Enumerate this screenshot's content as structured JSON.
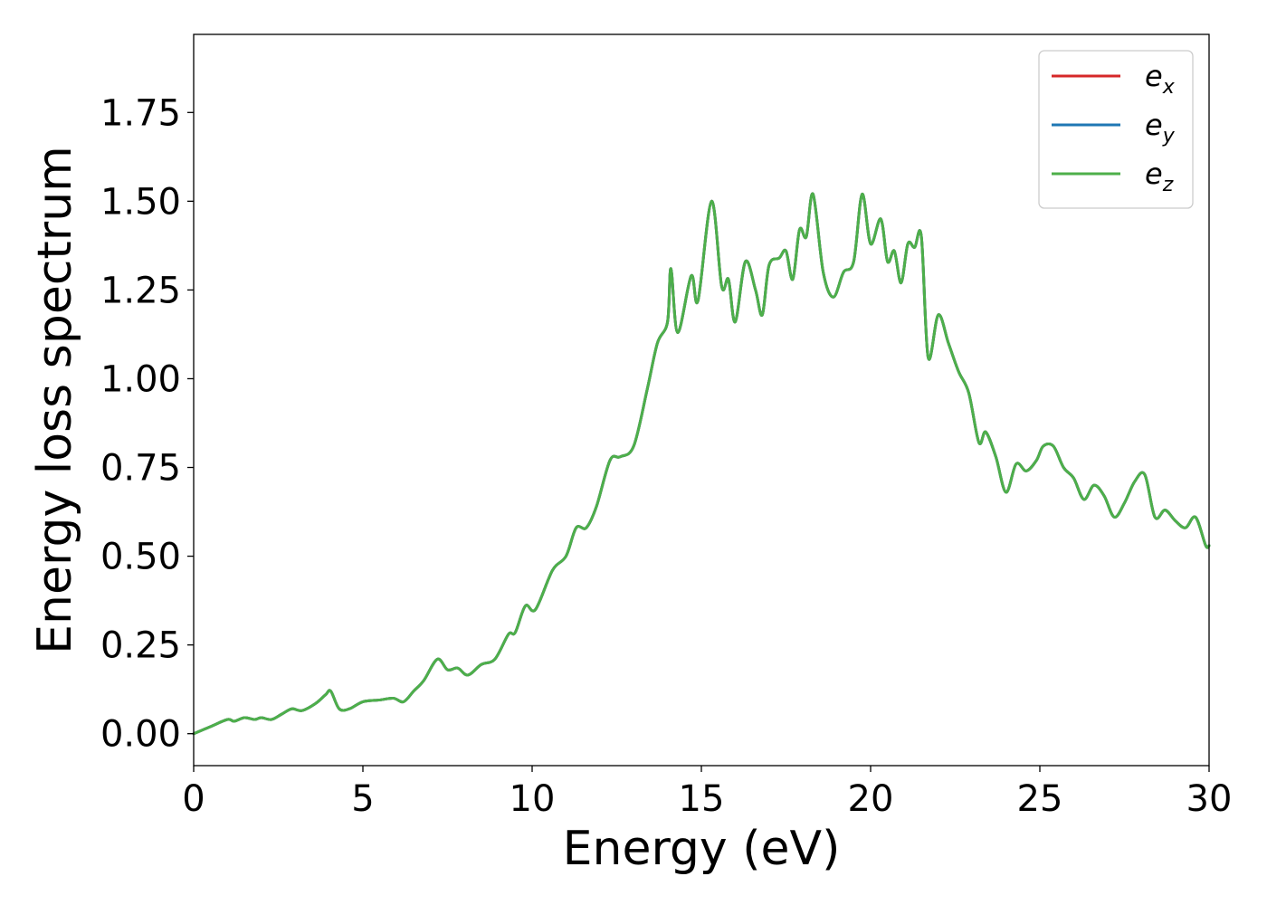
{
  "chart_data": {
    "type": "line",
    "title": "",
    "xlabel": "Energy (eV)",
    "ylabel": "Energy loss spectrum",
    "xlim": [
      0,
      30
    ],
    "ylim": [
      -0.09,
      1.97
    ],
    "xticks": [
      0,
      5,
      10,
      15,
      20,
      25,
      30
    ],
    "xtick_labels": [
      "0",
      "5",
      "10",
      "15",
      "20",
      "25",
      "30"
    ],
    "yticks": [
      0.0,
      0.25,
      0.5,
      0.75,
      1.0,
      1.25,
      1.5,
      1.75
    ],
    "ytick_labels": [
      "0.00",
      "0.25",
      "0.50",
      "0.75",
      "1.00",
      "1.25",
      "1.50",
      "1.75"
    ],
    "grid": false,
    "legend_position": "top-right",
    "x": [
      0,
      0.5,
      1.0,
      1.2,
      1.5,
      1.8,
      2.0,
      2.3,
      2.6,
      2.9,
      3.2,
      3.6,
      3.9,
      4.05,
      4.3,
      4.6,
      5.0,
      5.5,
      5.9,
      6.2,
      6.5,
      6.8,
      7.2,
      7.5,
      7.8,
      8.1,
      8.5,
      8.9,
      9.3,
      9.5,
      9.8,
      10.1,
      10.6,
      11.0,
      11.3,
      11.6,
      11.9,
      12.3,
      12.6,
      13.0,
      13.4,
      13.7,
      14.0,
      14.1,
      14.3,
      14.7,
      14.9,
      15.3,
      15.6,
      15.8,
      16.0,
      16.3,
      16.6,
      16.8,
      17.0,
      17.3,
      17.5,
      17.7,
      17.9,
      18.1,
      18.3,
      18.6,
      18.9,
      19.2,
      19.5,
      19.75,
      20.0,
      20.3,
      20.5,
      20.7,
      20.9,
      21.1,
      21.3,
      21.5,
      21.7,
      22.0,
      22.3,
      22.6,
      22.9,
      23.2,
      23.4,
      23.7,
      24.0,
      24.3,
      24.6,
      24.9,
      25.1,
      25.4,
      25.7,
      26.0,
      26.3,
      26.6,
      26.9,
      27.2,
      27.5,
      27.8,
      28.1,
      28.4,
      28.7,
      29.0,
      29.3,
      29.6,
      29.9,
      30.0
    ],
    "series": [
      {
        "name": "e_x",
        "color": "#d62728",
        "values": [
          0.0,
          0.02,
          0.04,
          0.035,
          0.045,
          0.04,
          0.045,
          0.04,
          0.055,
          0.07,
          0.065,
          0.085,
          0.11,
          0.12,
          0.07,
          0.07,
          0.09,
          0.095,
          0.1,
          0.09,
          0.12,
          0.15,
          0.21,
          0.18,
          0.185,
          0.165,
          0.195,
          0.21,
          0.28,
          0.285,
          0.36,
          0.35,
          0.46,
          0.5,
          0.58,
          0.58,
          0.64,
          0.77,
          0.78,
          0.81,
          0.97,
          1.1,
          1.16,
          1.31,
          1.13,
          1.29,
          1.22,
          1.5,
          1.26,
          1.28,
          1.16,
          1.33,
          1.25,
          1.18,
          1.32,
          1.34,
          1.36,
          1.28,
          1.42,
          1.4,
          1.52,
          1.3,
          1.23,
          1.3,
          1.33,
          1.52,
          1.38,
          1.45,
          1.33,
          1.36,
          1.27,
          1.38,
          1.37,
          1.4,
          1.06,
          1.18,
          1.1,
          1.02,
          0.96,
          0.82,
          0.85,
          0.78,
          0.68,
          0.76,
          0.74,
          0.77,
          0.81,
          0.81,
          0.75,
          0.72,
          0.66,
          0.7,
          0.67,
          0.61,
          0.65,
          0.71,
          0.73,
          0.61,
          0.63,
          0.6,
          0.58,
          0.61,
          0.53,
          0.53
        ]
      },
      {
        "name": "e_y",
        "color": "#1f77b4",
        "values": [
          0.0,
          0.02,
          0.04,
          0.035,
          0.045,
          0.04,
          0.045,
          0.04,
          0.055,
          0.07,
          0.065,
          0.085,
          0.11,
          0.12,
          0.07,
          0.07,
          0.09,
          0.095,
          0.1,
          0.09,
          0.12,
          0.15,
          0.21,
          0.18,
          0.185,
          0.165,
          0.195,
          0.21,
          0.28,
          0.285,
          0.36,
          0.35,
          0.46,
          0.5,
          0.58,
          0.58,
          0.64,
          0.77,
          0.78,
          0.81,
          0.97,
          1.1,
          1.16,
          1.31,
          1.13,
          1.29,
          1.22,
          1.5,
          1.26,
          1.28,
          1.16,
          1.33,
          1.25,
          1.18,
          1.32,
          1.34,
          1.36,
          1.28,
          1.42,
          1.4,
          1.52,
          1.3,
          1.23,
          1.3,
          1.33,
          1.52,
          1.38,
          1.45,
          1.33,
          1.36,
          1.27,
          1.38,
          1.37,
          1.4,
          1.06,
          1.18,
          1.1,
          1.02,
          0.96,
          0.82,
          0.85,
          0.78,
          0.68,
          0.76,
          0.74,
          0.77,
          0.81,
          0.81,
          0.75,
          0.72,
          0.66,
          0.7,
          0.67,
          0.61,
          0.65,
          0.71,
          0.73,
          0.61,
          0.63,
          0.6,
          0.58,
          0.61,
          0.53,
          0.53
        ]
      },
      {
        "name": "e_z",
        "color": "#4daf4a",
        "values": [
          0.0,
          0.02,
          0.04,
          0.035,
          0.045,
          0.04,
          0.045,
          0.04,
          0.055,
          0.07,
          0.065,
          0.085,
          0.11,
          0.12,
          0.07,
          0.07,
          0.09,
          0.095,
          0.1,
          0.09,
          0.12,
          0.15,
          0.21,
          0.18,
          0.185,
          0.165,
          0.195,
          0.21,
          0.28,
          0.285,
          0.36,
          0.35,
          0.46,
          0.5,
          0.58,
          0.58,
          0.64,
          0.77,
          0.78,
          0.81,
          0.97,
          1.1,
          1.16,
          1.31,
          1.13,
          1.29,
          1.22,
          1.5,
          1.26,
          1.28,
          1.16,
          1.33,
          1.25,
          1.18,
          1.32,
          1.34,
          1.36,
          1.28,
          1.42,
          1.4,
          1.52,
          1.3,
          1.23,
          1.3,
          1.33,
          1.52,
          1.38,
          1.45,
          1.33,
          1.36,
          1.27,
          1.38,
          1.37,
          1.4,
          1.06,
          1.18,
          1.1,
          1.02,
          0.96,
          0.82,
          0.85,
          0.78,
          0.68,
          0.76,
          0.74,
          0.77,
          0.81,
          0.81,
          0.75,
          0.72,
          0.66,
          0.7,
          0.67,
          0.61,
          0.65,
          0.71,
          0.73,
          0.61,
          0.63,
          0.6,
          0.58,
          0.61,
          0.53,
          0.53
        ]
      }
    ],
    "legend": [
      {
        "base": "e",
        "sub": "x",
        "color": "#d62728"
      },
      {
        "base": "e",
        "sub": "y",
        "color": "#1f77b4"
      },
      {
        "base": "e",
        "sub": "z",
        "color": "#4daf4a"
      }
    ]
  }
}
